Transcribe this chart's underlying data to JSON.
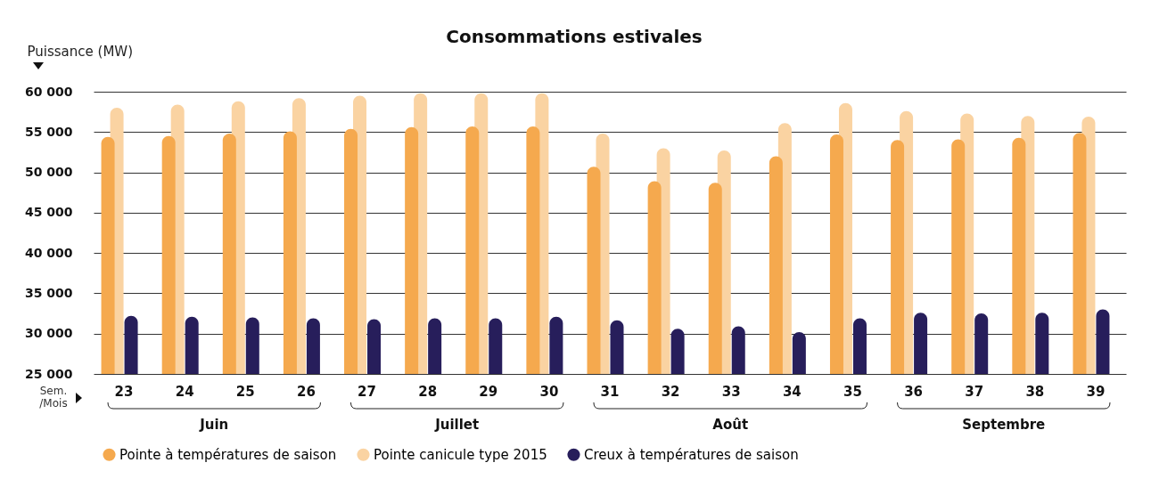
{
  "chart_data": {
    "type": "bar",
    "title": "Consommations estivales",
    "ylabel": "Puissance (MW)",
    "xlabel": "Sem. /Mois",
    "categories": [
      "23",
      "24",
      "25",
      "26",
      "27",
      "28",
      "29",
      "30",
      "31",
      "32",
      "33",
      "34",
      "35",
      "36",
      "37",
      "38",
      "39"
    ],
    "series": [
      {
        "name": "Pointe à températures de saison",
        "color": "#f5a94e",
        "values": [
          54400,
          54500,
          54800,
          55100,
          55400,
          55600,
          55700,
          55700,
          50700,
          48900,
          48700,
          52000,
          54700,
          54000,
          54100,
          54300,
          54900
        ]
      },
      {
        "name": "Pointe canicule type 2015",
        "color": "#fad3a2",
        "values": [
          58000,
          58400,
          58800,
          59200,
          59500,
          59800,
          59800,
          59800,
          54800,
          53000,
          52700,
          56100,
          58600,
          57600,
          57300,
          57000,
          56900
        ]
      },
      {
        "name": "Creux à températures de saison",
        "color": "#271e5b",
        "values": [
          32200,
          32100,
          32000,
          31900,
          31800,
          31900,
          31900,
          32100,
          31650,
          30600,
          30900,
          30200,
          31900,
          32600,
          32500,
          32600,
          33000
        ]
      }
    ],
    "ylim": [
      25000,
      60000
    ],
    "yticks": [
      25000,
      30000,
      35000,
      40000,
      45000,
      50000,
      55000,
      60000
    ],
    "grid": "y",
    "legend": "bottom",
    "annotations": [
      "Juin",
      "Juillet",
      "Août",
      "Septembre"
    ]
  }
}
